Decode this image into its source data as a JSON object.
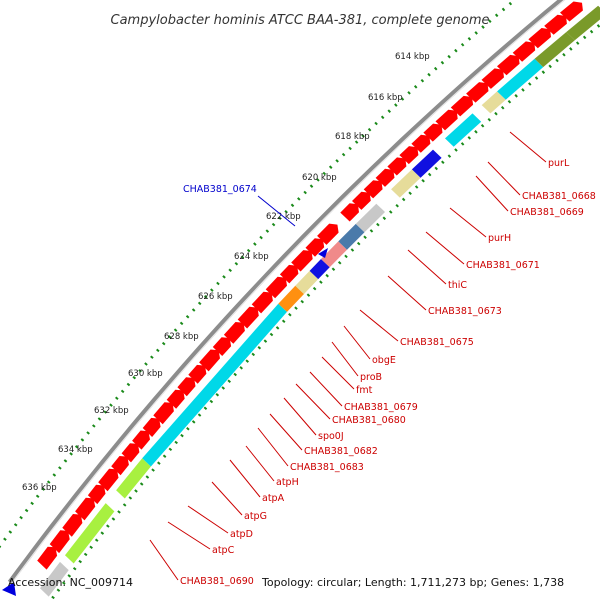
{
  "title": "Campylobacter hominis ATCC BAA-381, complete genome",
  "ticks": [
    "614 kbp",
    "616 kbp",
    "618 kbp",
    "620 kbp",
    "622 kbp",
    "624 kbp",
    "626 kbp",
    "628 kbp",
    "630 kbp",
    "632 kbp",
    "634 kbp",
    "636 kbp"
  ],
  "gene_labels": [
    "purL",
    "CHAB381_0668",
    "CHAB381_0669",
    "purH",
    "CHAB381_0671",
    "thiC",
    "CHAB381_0673",
    "CHAB381_0675",
    "obgE",
    "proB",
    "fmt",
    "CHAB381_0679",
    "CHAB381_0680",
    "spo0J",
    "CHAB381_0682",
    "CHAB381_0683",
    "atpH",
    "atpA",
    "atpG",
    "atpD",
    "atpC",
    "CHAB381_0690"
  ],
  "blue_label": "CHAB381_0674",
  "footer": {
    "accession": "Accession: NC_009714",
    "info": "Topology: circular; Length: 1,711,273 bp; Genes: 1,738"
  },
  "colors": {
    "gene_forward": "#ff0000",
    "backbone": "#8c8c8c",
    "tick_dots": "#1a8a1a",
    "label_red": "#cc0000",
    "label_blue": "#0000cc",
    "cog_cyan": "#00d8e8",
    "cog_olive": "#7a9a2a",
    "cog_khaki": "#e6dc9a",
    "cog_blue": "#1010e0",
    "cog_steel": "#4a7aaa",
    "cog_pink": "#f08a8a",
    "cog_orange": "#ff9010",
    "cog_lime": "#a8f040",
    "cog_gray": "#c8c8c8"
  }
}
